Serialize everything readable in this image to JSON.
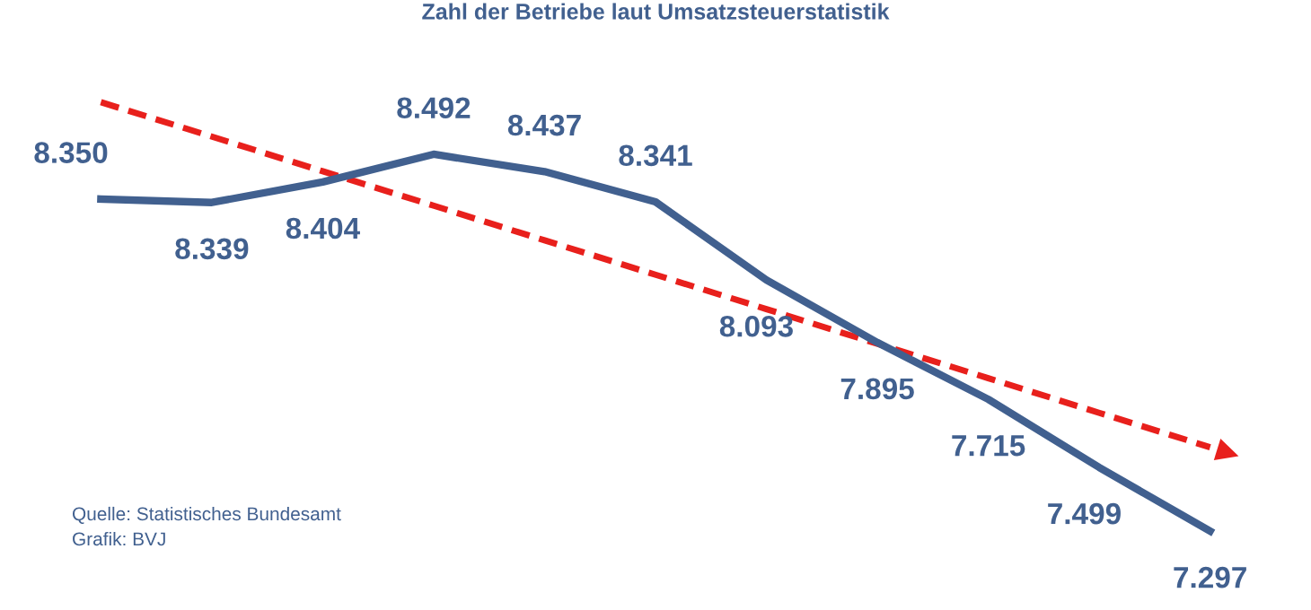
{
  "chart_data": {
    "type": "line",
    "title": "Zahl der Betriebe laut Umsatzsteuerstatistik",
    "categories": [
      null,
      null,
      null,
      null,
      null,
      null,
      null,
      null,
      null,
      null,
      null
    ],
    "series": [
      {
        "color": "#41608f",
        "values": [
          8350,
          8339,
          8404,
          8492,
          8437,
          8341,
          8093,
          7895,
          7715,
          7499,
          7297
        ],
        "value_labels": [
          "8.350",
          "8.339",
          "8.404",
          "8.492",
          "8.437",
          "8.341",
          "8.093",
          "7.895",
          "7.715",
          "7.499",
          "7.297"
        ]
      },
      {
        "type": "line",
        "color": "#e8201c",
        "line_style": "dashed",
        "values": [
          8657,
          8548,
          8438,
          8329,
          8219,
          8110,
          8001,
          7891,
          7782,
          7672,
          7563
        ]
      }
    ],
    "grid": false,
    "legend": false,
    "annotations": [
      "Quelle: Statistisches Bundesamt",
      "Grafik: BVJ"
    ]
  }
}
